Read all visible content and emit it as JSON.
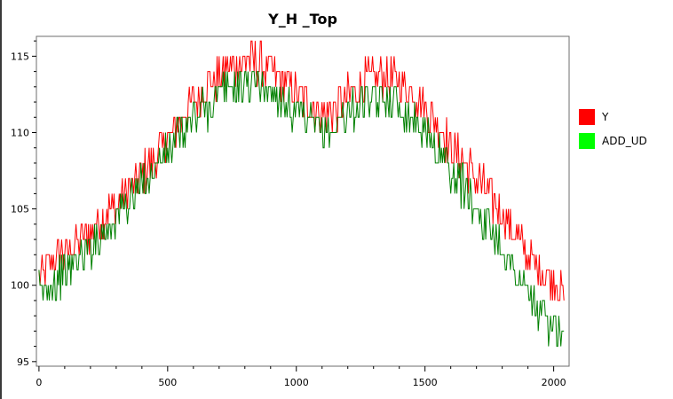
{
  "chart_data": {
    "type": "line",
    "title": "Y_H _Top",
    "xlabel": "",
    "ylabel": "",
    "xlim": [
      -10,
      2060
    ],
    "ylim": [
      94.7,
      116.3
    ],
    "xticks": [
      0,
      500,
      1000,
      1500,
      2000
    ],
    "yticks": [
      95,
      100,
      105,
      110,
      115
    ],
    "legend_position": "right",
    "grid": false,
    "series": [
      {
        "name": "Y",
        "color": "#ff0000",
        "x": [
          0,
          50,
          100,
          150,
          200,
          250,
          300,
          350,
          400,
          450,
          500,
          550,
          600,
          650,
          700,
          750,
          800,
          850,
          900,
          950,
          1000,
          1050,
          1100,
          1150,
          1200,
          1250,
          1300,
          1350,
          1400,
          1450,
          1500,
          1550,
          1600,
          1650,
          1700,
          1750,
          1800,
          1850,
          1900,
          1950,
          2000,
          2040
        ],
        "y": [
          100.5,
          101.3,
          102.1,
          102.8,
          103.6,
          104.5,
          105.3,
          106.3,
          107.2,
          108.3,
          109.5,
          110.8,
          112,
          112.9,
          113.7,
          114.3,
          114.7,
          114.6,
          114.1,
          113.3,
          112.6,
          111.8,
          111.2,
          111.5,
          112.3,
          113.1,
          113.6,
          113.7,
          113.3,
          112.7,
          111.7,
          110.3,
          109.2,
          108.1,
          107,
          105.8,
          104.6,
          103.4,
          102,
          100.9,
          100.3,
          99.3
        ]
      },
      {
        "name": "ADD_UD",
        "color": "#008000",
        "x": [
          0,
          50,
          100,
          150,
          200,
          250,
          300,
          350,
          400,
          450,
          500,
          550,
          600,
          650,
          700,
          750,
          800,
          850,
          900,
          950,
          1000,
          1050,
          1100,
          1150,
          1200,
          1250,
          1300,
          1350,
          1400,
          1450,
          1500,
          1550,
          1600,
          1650,
          1700,
          1750,
          1800,
          1850,
          1900,
          1950,
          2000,
          2040
        ],
        "y": [
          99.4,
          100.1,
          100.9,
          101.7,
          102.6,
          103.5,
          104.6,
          105.5,
          106.6,
          107.6,
          108.7,
          109.9,
          110.9,
          111.6,
          112.4,
          113,
          113.3,
          113.2,
          112.7,
          112,
          111.3,
          110.5,
          109.9,
          110.4,
          111.2,
          111.8,
          112.2,
          112.2,
          111.7,
          111.1,
          110.1,
          108.8,
          107.6,
          106.4,
          105.1,
          103.8,
          102.5,
          100.8,
          99.4,
          98.1,
          97.4,
          96
        ]
      }
    ]
  }
}
